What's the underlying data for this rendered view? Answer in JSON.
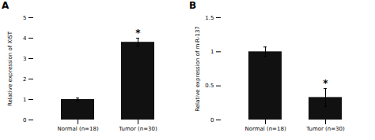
{
  "chart_data": [
    {
      "type": "bar",
      "title": "A",
      "categories": [
        "Normal (n=18)",
        "Tumor (n=30)"
      ],
      "values": [
        1.0,
        3.8
      ],
      "errors": [
        0.07,
        0.2
      ],
      "ylabel": "Relative expression of XIST",
      "ylim": [
        0,
        5
      ],
      "yticks": [
        0,
        1,
        2,
        3,
        4,
        5
      ],
      "color": "#111111",
      "annotations": [
        {
          "category": "Tumor (n=30)",
          "text": "*"
        }
      ]
    },
    {
      "type": "bar",
      "title": "B",
      "categories": [
        "Normal (n=18)",
        "Tumor (n=30)"
      ],
      "values": [
        1.0,
        0.33
      ],
      "errors": [
        0.07,
        0.13
      ],
      "ylabel": "Relative expression of miR-137",
      "ylim": [
        0,
        1.5
      ],
      "yticks": [
        0,
        0.5,
        1,
        1.5
      ],
      "color": "#111111",
      "annotations": [
        {
          "category": "Tumor (n=30)",
          "text": "*"
        }
      ]
    }
  ]
}
